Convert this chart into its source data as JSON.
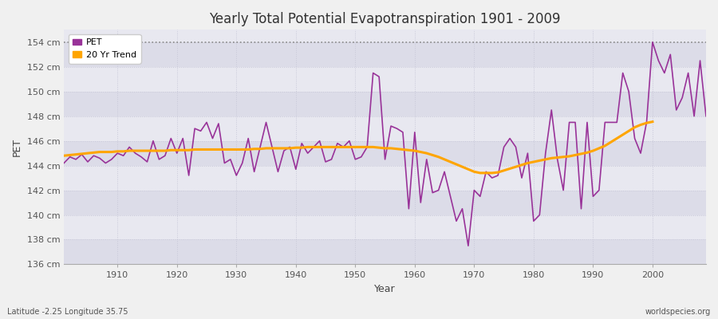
{
  "title": "Yearly Total Potential Evapotranspiration 1901 - 2009",
  "xlabel": "Year",
  "ylabel": "PET",
  "subtitle_left": "Latitude -2.25 Longitude 35.75",
  "subtitle_right": "worldspecies.org",
  "pet_color": "#993399",
  "trend_color": "#FFA500",
  "bg_color": "#F0F0F0",
  "plot_bg_color": "#E0E0E8",
  "band_color1": "#DCDCE8",
  "band_color2": "#E8E8F0",
  "grid_color": "#C8C8D8",
  "ylim": [
    136,
    155
  ],
  "xlim": [
    1901,
    2009
  ],
  "dotted_line_y": 154,
  "years": [
    1901,
    1902,
    1903,
    1904,
    1905,
    1906,
    1907,
    1908,
    1909,
    1910,
    1911,
    1912,
    1913,
    1914,
    1915,
    1916,
    1917,
    1918,
    1919,
    1920,
    1921,
    1922,
    1923,
    1924,
    1925,
    1926,
    1927,
    1928,
    1929,
    1930,
    1931,
    1932,
    1933,
    1934,
    1935,
    1936,
    1937,
    1938,
    1939,
    1940,
    1941,
    1942,
    1943,
    1944,
    1945,
    1946,
    1947,
    1948,
    1949,
    1950,
    1951,
    1952,
    1953,
    1954,
    1955,
    1956,
    1957,
    1958,
    1959,
    1960,
    1961,
    1962,
    1963,
    1964,
    1965,
    1966,
    1967,
    1968,
    1969,
    1970,
    1971,
    1972,
    1973,
    1974,
    1975,
    1976,
    1977,
    1978,
    1979,
    1980,
    1981,
    1982,
    1983,
    1984,
    1985,
    1986,
    1987,
    1988,
    1989,
    1990,
    1991,
    1992,
    1993,
    1994,
    1995,
    1996,
    1997,
    1998,
    1999,
    2000,
    2001,
    2002,
    2003,
    2004,
    2005,
    2006,
    2007,
    2008,
    2009
  ],
  "pet_values": [
    144.2,
    144.7,
    144.5,
    144.9,
    144.3,
    144.8,
    144.6,
    144.2,
    144.5,
    145.0,
    144.8,
    145.5,
    145.0,
    144.7,
    144.3,
    146.0,
    144.5,
    144.8,
    146.2,
    145.0,
    146.2,
    143.2,
    147.0,
    146.8,
    147.5,
    146.2,
    147.4,
    144.2,
    144.5,
    143.2,
    144.2,
    146.2,
    143.5,
    145.5,
    147.5,
    145.5,
    143.5,
    145.2,
    145.5,
    143.7,
    145.8,
    145.0,
    145.5,
    146.0,
    144.3,
    144.5,
    145.8,
    145.5,
    146.0,
    144.5,
    144.7,
    145.5,
    151.5,
    151.2,
    144.5,
    147.2,
    147.0,
    146.7,
    140.5,
    146.7,
    141.0,
    144.5,
    141.8,
    142.0,
    143.5,
    141.5,
    139.5,
    140.5,
    137.5,
    142.0,
    141.5,
    143.5,
    143.0,
    143.2,
    145.5,
    146.2,
    145.5,
    143.0,
    145.0,
    139.5,
    140.0,
    145.0,
    148.5,
    144.5,
    142.0,
    147.5,
    147.5,
    140.5,
    147.5,
    141.5,
    142.0,
    147.5,
    147.5,
    147.5,
    151.5,
    150.0,
    146.2,
    145.0,
    147.5,
    154.0,
    152.5,
    151.5,
    153.0,
    148.5,
    149.5,
    151.5,
    148.0,
    152.5,
    148.0
  ],
  "trend_values": [
    144.8,
    144.85,
    144.9,
    144.95,
    145.0,
    145.05,
    145.1,
    145.1,
    145.1,
    145.15,
    145.15,
    145.2,
    145.2,
    145.2,
    145.2,
    145.2,
    145.2,
    145.2,
    145.25,
    145.25,
    145.25,
    145.25,
    145.3,
    145.3,
    145.3,
    145.3,
    145.3,
    145.3,
    145.3,
    145.3,
    145.3,
    145.3,
    145.35,
    145.35,
    145.4,
    145.4,
    145.4,
    145.4,
    145.4,
    145.45,
    145.45,
    145.5,
    145.5,
    145.5,
    145.5,
    145.5,
    145.5,
    145.5,
    145.5,
    145.5,
    145.5,
    145.5,
    145.5,
    145.45,
    145.4,
    145.4,
    145.35,
    145.3,
    145.25,
    145.2,
    145.1,
    145.0,
    144.85,
    144.7,
    144.5,
    144.3,
    144.1,
    143.9,
    143.7,
    143.5,
    143.4,
    143.4,
    143.4,
    143.45,
    143.6,
    143.75,
    143.9,
    144.05,
    144.2,
    144.3,
    144.4,
    144.5,
    144.6,
    144.65,
    144.7,
    144.75,
    144.85,
    144.95,
    145.05,
    145.2,
    145.4,
    145.6,
    145.9,
    146.2,
    146.5,
    146.8,
    147.1,
    147.3,
    147.45,
    147.55,
    null,
    null,
    null,
    null,
    null,
    null,
    null,
    null,
    null
  ]
}
